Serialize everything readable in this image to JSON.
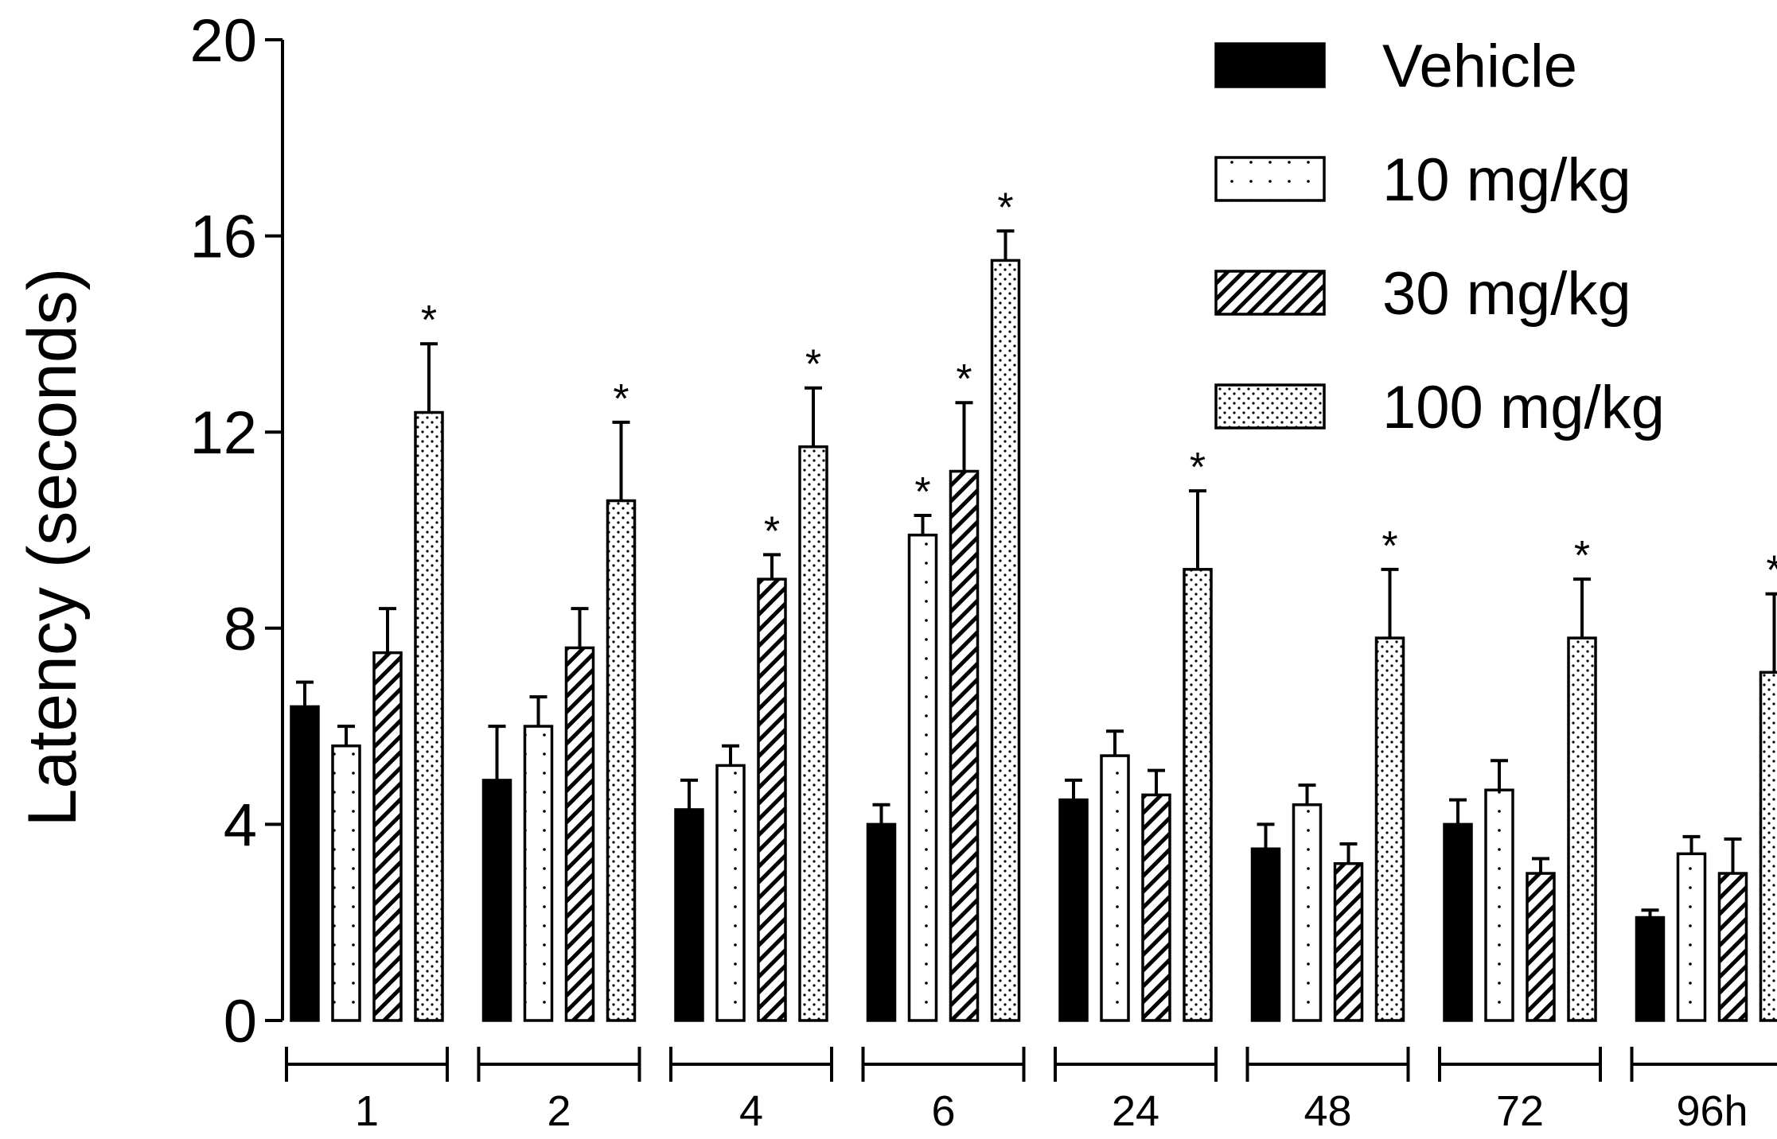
{
  "chart_data": {
    "type": "bar",
    "title": "",
    "xlabel": "",
    "ylabel": "Latency (seconds)",
    "ylim": [
      0,
      20
    ],
    "yticks": [
      0,
      4,
      8,
      12,
      16,
      20
    ],
    "categories": [
      "1",
      "2",
      "4",
      "6",
      "24",
      "48",
      "72",
      "96h"
    ],
    "series": [
      {
        "name": "Vehicle",
        "pattern": "solid",
        "values": [
          6.4,
          4.9,
          4.3,
          4.0,
          4.5,
          3.5,
          4.0,
          2.1
        ],
        "errors": [
          0.5,
          1.1,
          0.6,
          0.4,
          0.4,
          0.5,
          0.5,
          0.15
        ],
        "significant": [
          false,
          false,
          false,
          false,
          false,
          false,
          false,
          false
        ]
      },
      {
        "name": "10 mg/kg",
        "pattern": "dots",
        "values": [
          5.6,
          6.0,
          5.2,
          9.9,
          5.4,
          4.4,
          4.7,
          3.4
        ],
        "errors": [
          0.4,
          0.6,
          0.4,
          0.4,
          0.5,
          0.4,
          0.6,
          0.35
        ],
        "significant": [
          false,
          false,
          false,
          true,
          false,
          false,
          false,
          false
        ]
      },
      {
        "name": "30 mg/kg",
        "pattern": "hatch",
        "values": [
          7.5,
          7.6,
          9.0,
          11.2,
          4.6,
          3.2,
          3.0,
          3.0
        ],
        "errors": [
          0.9,
          0.8,
          0.5,
          1.4,
          0.5,
          0.4,
          0.3,
          0.7
        ],
        "significant": [
          false,
          false,
          true,
          true,
          false,
          false,
          false,
          false
        ]
      },
      {
        "name": "100 mg/kg",
        "pattern": "stipple",
        "values": [
          12.4,
          10.6,
          11.7,
          15.5,
          9.2,
          7.8,
          7.8,
          7.1
        ],
        "errors": [
          1.4,
          1.6,
          1.2,
          0.6,
          1.6,
          1.4,
          1.2,
          1.6
        ],
        "significant": [
          true,
          true,
          true,
          true,
          true,
          true,
          true,
          true
        ]
      }
    ],
    "significance_marker": "*",
    "legend_position": "top-right"
  },
  "colors": {
    "ink": "#000000",
    "background": "#ffffff"
  }
}
